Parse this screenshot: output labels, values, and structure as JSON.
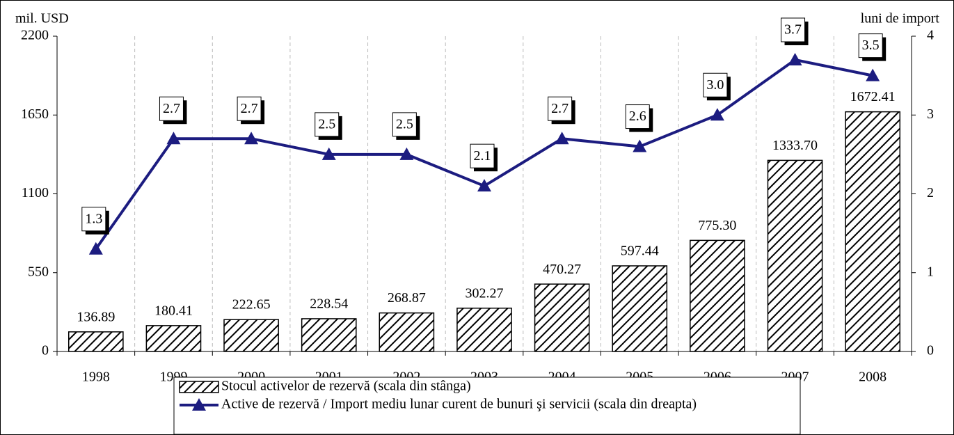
{
  "chart_data": {
    "type": "combo",
    "y_axis_label": "mil. USD",
    "y2_axis_label": "luni de import",
    "categories": [
      "1998",
      "1999",
      "2000",
      "2001",
      "2002",
      "2003",
      "2004",
      "2005",
      "2006",
      "2007",
      "2008"
    ],
    "series": [
      {
        "name": "Stocul activelor de rezervă (scala din stânga)",
        "type": "bar",
        "color": "#000000",
        "axis": "y",
        "values": [
          136.89,
          180.41,
          222.65,
          228.54,
          268.87,
          302.27,
          470.27,
          597.44,
          775.3,
          1333.7,
          1672.41
        ],
        "value_labels": [
          "136.89",
          "180.41",
          "222.65",
          "228.54",
          "268.87",
          "302.27",
          "470.27",
          "597.44",
          "775.30",
          "1333.70",
          "1672.41"
        ]
      },
      {
        "name": "Active de rezervă / Import mediu lunar curent de bunuri şi servicii (scala din dreapta)",
        "type": "line",
        "color": "#1c1c80",
        "axis": "y2",
        "values": [
          1.3,
          2.7,
          2.7,
          2.5,
          2.5,
          2.1,
          2.7,
          2.6,
          3.0,
          3.7,
          3.5
        ],
        "value_labels": [
          "1.3",
          "2.7",
          "2.7",
          "2.5",
          "2.5",
          "2.1",
          "2.7",
          "2.6",
          "3.0",
          "3.7",
          "3.5"
        ]
      }
    ],
    "ylim": [
      0,
      2200
    ],
    "yticks": [
      0,
      550,
      1100,
      1650,
      2200
    ],
    "y2lim": [
      0,
      4
    ],
    "y2ticks": [
      0,
      1,
      2,
      3,
      4
    ],
    "xgrid": true
  }
}
